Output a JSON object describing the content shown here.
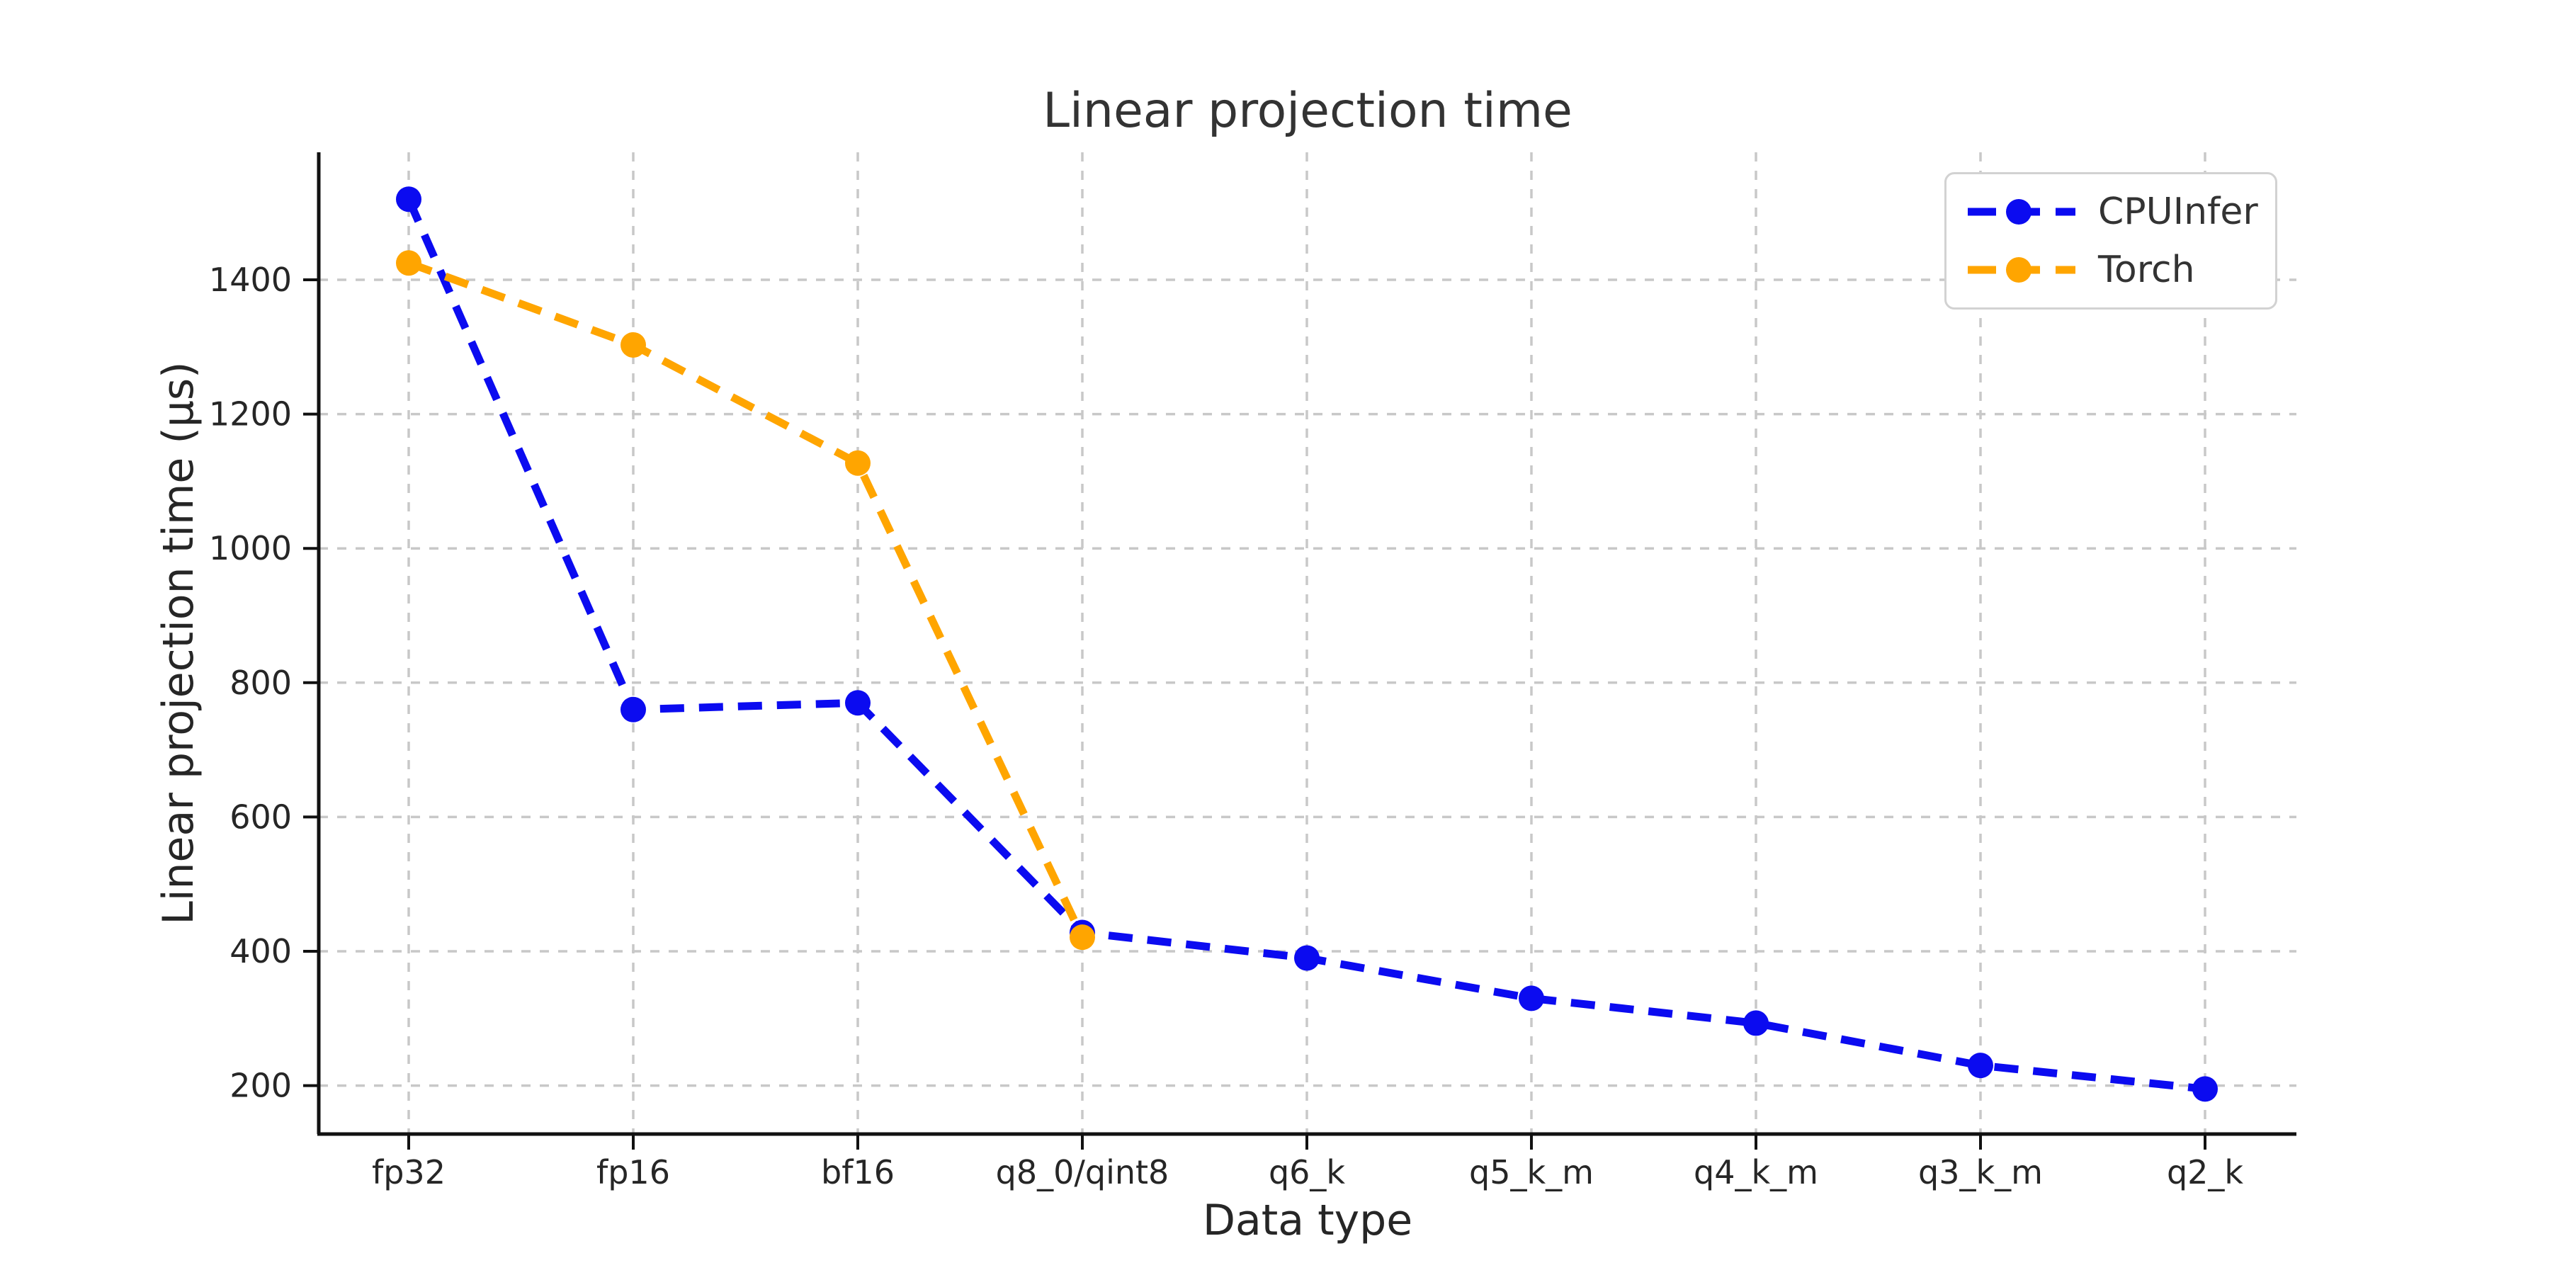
{
  "title": "Linear projection time",
  "xlabel": "Data type",
  "ylabel": "Linear projection time (µs)",
  "legend": {
    "items": [
      {
        "label": "CPUInfer",
        "color": "#0b0bf0"
      },
      {
        "label": "Torch",
        "color": "#ffa500"
      }
    ],
    "position": "upper right"
  },
  "colors": {
    "cpuinfer": "#0b0bf0",
    "torch": "#ffa500",
    "grid": "#c8c8c8",
    "axis": "#111111",
    "text": "#262626"
  },
  "chart_data": {
    "type": "line",
    "title": "Linear projection time",
    "xlabel": "Data type",
    "ylabel": "Linear projection time (µs)",
    "categories": [
      "fp32",
      "fp16",
      "bf16",
      "q8_0/qint8",
      "q6_k",
      "q5_k_m",
      "q4_k_m",
      "q3_k_m",
      "q2_k"
    ],
    "series": [
      {
        "name": "CPUInfer",
        "color": "#0b0bf0",
        "values": [
          1520,
          760,
          770,
          428,
          390,
          330,
          293,
          230,
          195
        ]
      },
      {
        "name": "Torch",
        "color": "#ffa500",
        "values": [
          1425,
          1303,
          1127,
          421,
          null,
          null,
          null,
          null,
          null
        ]
      }
    ],
    "yticks": [
      200,
      400,
      600,
      800,
      1000,
      1200,
      1400
    ],
    "ylim": [
      90,
      1590
    ],
    "grid": true,
    "line_style": "dashed",
    "marker": "circle",
    "legend_position": "upper right"
  }
}
